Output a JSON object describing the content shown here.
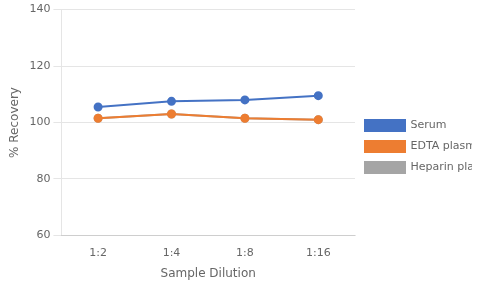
{
  "chart_data": {
    "type": "line",
    "categories": [
      "1:2",
      "1:4",
      "1:8",
      "1:16"
    ],
    "series": [
      {
        "name": "Serum",
        "color": "#4472C4",
        "values": [
          105.5,
          107.5,
          108.0,
          109.5
        ]
      },
      {
        "name": "EDTA plasma",
        "color": "#ED7D31",
        "values": [
          101.5,
          103.0,
          101.5,
          101.0
        ]
      },
      {
        "name": "Heparin plasma",
        "color": "#A5A5A5",
        "values": [
          101.5,
          103.0,
          101.5,
          101.0
        ]
      }
    ],
    "xlabel": "Sample Dilution",
    "ylabel": "% Recovery",
    "ylim": [
      60,
      140
    ],
    "yticks": [
      60,
      80,
      100,
      120,
      140
    ],
    "grid": "y",
    "legend": "right",
    "marker": "circle"
  }
}
